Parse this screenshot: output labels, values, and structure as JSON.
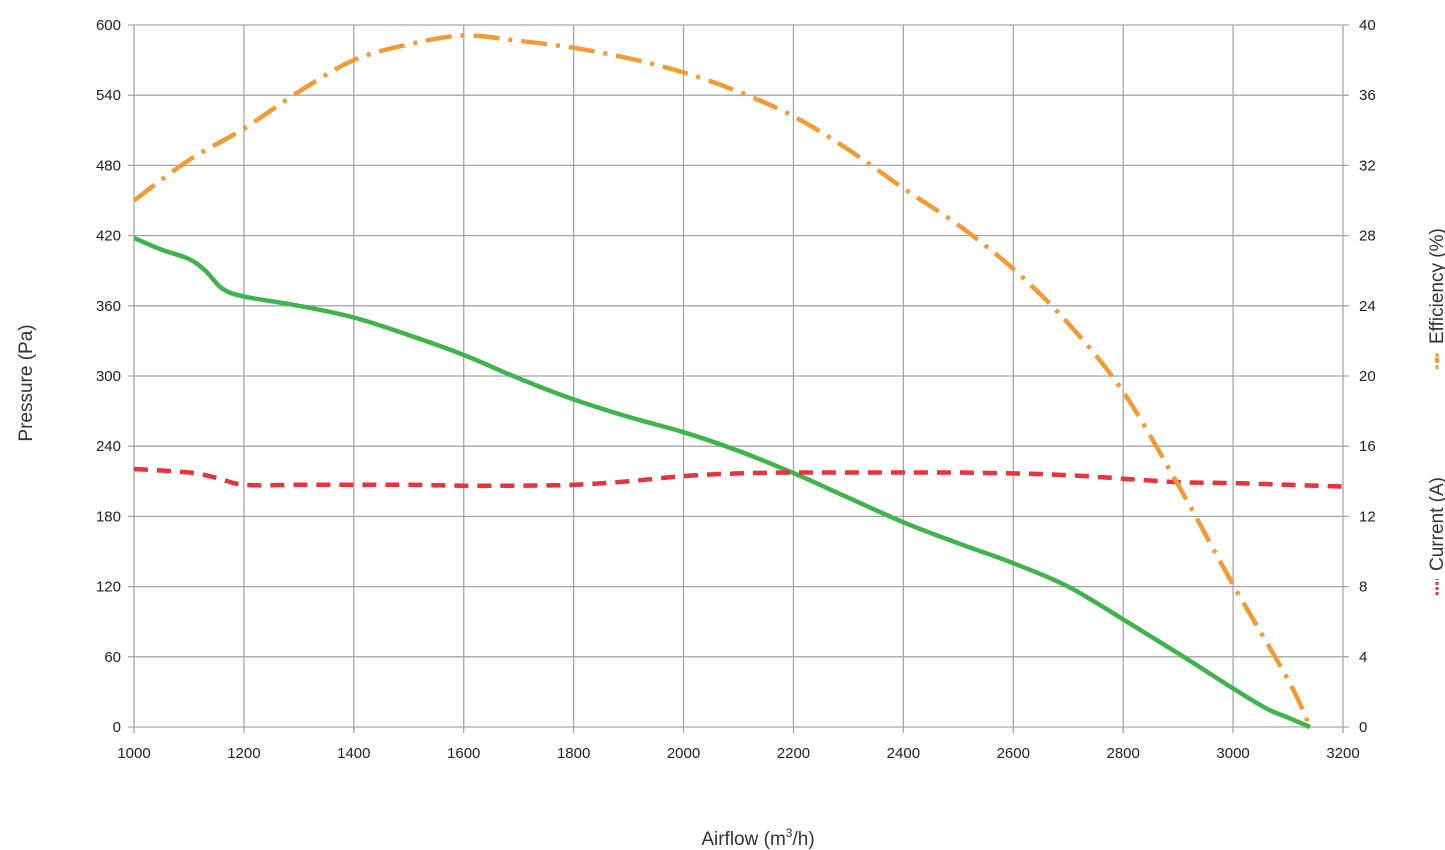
{
  "chart_data": {
    "type": "line",
    "title": "",
    "xlabel": "Airflow (m",
    "xlabel_sup": "3",
    "xlabel_suffix": "/h)",
    "ylabel_left": "Pressure (Pa)",
    "ylabel_right_efficiency": "Efficiency (%)",
    "ylabel_right_current": "Current (A)",
    "grid": true,
    "xlim": [
      1000,
      3200
    ],
    "ylim_left": [
      0,
      600
    ],
    "ylim_right": [
      0,
      40
    ],
    "x_ticks": [
      "1000",
      "1200",
      "1400",
      "1600",
      "1800",
      "2000",
      "2200",
      "2400",
      "2600",
      "2800",
      "3000",
      "3200"
    ],
    "y_left_ticks": [
      "0",
      "60",
      "120",
      "180",
      "240",
      "300",
      "360",
      "420",
      "480",
      "540",
      "600"
    ],
    "y_right_ticks": [
      "0",
      "4",
      "8",
      "12",
      "16",
      "20",
      "24",
      "28",
      "32",
      "36",
      "40"
    ],
    "colors": {
      "pressure": "#3db54a",
      "current": "#e8323c",
      "efficiency": "#f39a32",
      "grid": "#a6a6a6"
    },
    "series": [
      {
        "key": "pressure",
        "axis": "left",
        "x": [
          1000,
          1050,
          1100,
          1130,
          1160,
          1200,
          1300,
          1400,
          1500,
          1600,
          1700,
          1800,
          1900,
          2000,
          2100,
          2200,
          2300,
          2400,
          2500,
          2600,
          2700,
          2800,
          2900,
          3000,
          3060,
          3100,
          3140
        ],
        "y": [
          418,
          408,
          400,
          390,
          375,
          368,
          360,
          350,
          335,
          318,
          298,
          280,
          265,
          252,
          236,
          217,
          196,
          175,
          157,
          140,
          120,
          92,
          63,
          33,
          16,
          8,
          0
        ]
      },
      {
        "key": "current",
        "axis": "right",
        "x": [
          1000,
          1100,
          1150,
          1200,
          1300,
          1400,
          1500,
          1600,
          1700,
          1800,
          1900,
          2000,
          2100,
          2200,
          2300,
          2400,
          2500,
          2600,
          2700,
          2800,
          2900,
          3000,
          3100,
          3200
        ],
        "y": [
          14.7,
          14.5,
          14.2,
          13.8,
          13.8,
          13.8,
          13.8,
          13.75,
          13.75,
          13.8,
          14.0,
          14.3,
          14.45,
          14.5,
          14.5,
          14.5,
          14.5,
          14.45,
          14.35,
          14.15,
          13.95,
          13.9,
          13.8,
          13.7
        ]
      },
      {
        "key": "efficiency",
        "axis": "right",
        "x": [
          1000,
          1100,
          1200,
          1300,
          1400,
          1500,
          1600,
          1700,
          1800,
          1900,
          2000,
          2100,
          2200,
          2300,
          2400,
          2500,
          2600,
          2700,
          2800,
          2900,
          3000,
          3100,
          3140
        ],
        "y": [
          30,
          32.3,
          34.1,
          36.2,
          38.0,
          38.9,
          39.4,
          39.1,
          38.7,
          38.1,
          37.3,
          36.2,
          34.8,
          32.9,
          30.7,
          28.6,
          26.1,
          23.0,
          19.1,
          13.8,
          8.1,
          2.7,
          0
        ]
      }
    ]
  }
}
